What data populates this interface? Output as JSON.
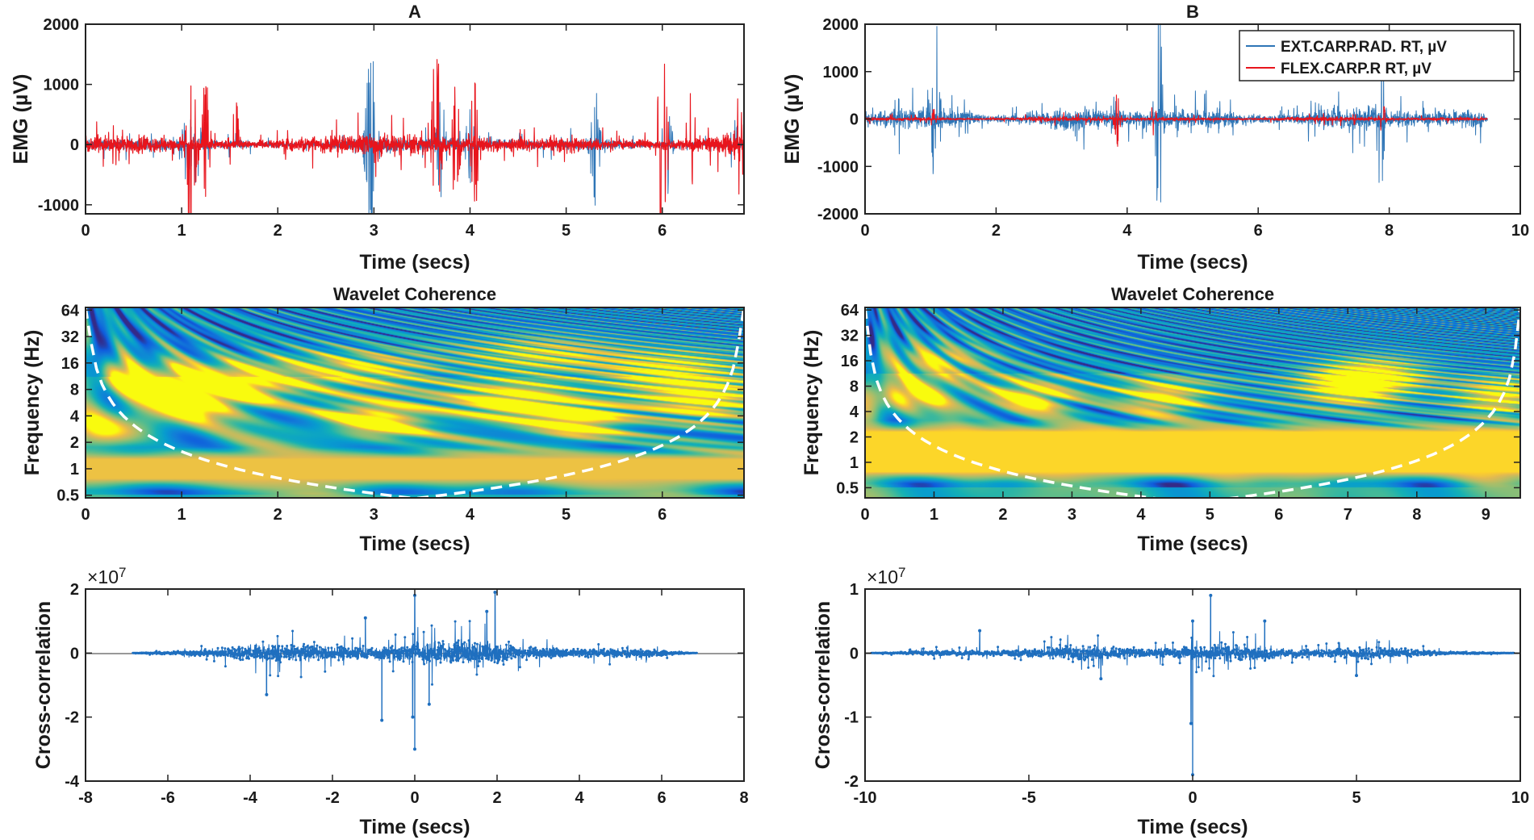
{
  "chart_data": [
    {
      "id": "A-emg",
      "type": "line",
      "title": "A",
      "xlabel": "Time (secs)",
      "ylabel": "EMG (µV)",
      "xlim": [
        0,
        6.85
      ],
      "ylim": [
        -1150,
        2000
      ],
      "xticks": [
        0,
        1,
        2,
        3,
        4,
        5,
        6
      ],
      "xtick_labels": [
        "0",
        "1",
        "2",
        "3",
        "4",
        "5",
        "6"
      ],
      "yticks": [
        -1000,
        0,
        1000,
        2000
      ],
      "ytick_labels": [
        "-1000",
        "0",
        "1000",
        "2000"
      ],
      "series": [
        {
          "name": "EXT.CARP.RAD. RT, µV",
          "color": "#2e75b6",
          "baseline_amp": 150,
          "bursts": [
            {
              "t": 1.05,
              "amp": 650
            },
            {
              "t": 1.15,
              "amp": 900
            },
            {
              "t": 2.95,
              "amp": 1050
            },
            {
              "t": 3.0,
              "amp": 950
            },
            {
              "t": 3.7,
              "amp": 1000
            },
            {
              "t": 4.0,
              "amp": 650
            },
            {
              "t": 5.3,
              "amp": 1050
            },
            {
              "t": 6.05,
              "amp": 900
            },
            {
              "t": 6.75,
              "amp": 600
            }
          ]
        },
        {
          "name": "FLEX.CARP.R RT, µV",
          "color": "#e8141c",
          "baseline_amp": 230,
          "bursts": [
            {
              "t": 1.1,
              "amp": 1750
            },
            {
              "t": 1.25,
              "amp": 1100
            },
            {
              "t": 1.55,
              "amp": 900
            },
            {
              "t": 3.65,
              "amp": 1800
            },
            {
              "t": 3.85,
              "amp": 1000
            },
            {
              "t": 4.05,
              "amp": 1100
            },
            {
              "t": 6.0,
              "amp": 1900
            },
            {
              "t": 6.3,
              "amp": 1000
            },
            {
              "t": 6.8,
              "amp": 950
            }
          ]
        }
      ]
    },
    {
      "id": "B-emg",
      "type": "line",
      "title": "B",
      "xlabel": "Time (secs)",
      "ylabel": "EMG (µV)",
      "xlim": [
        0,
        10
      ],
      "ylim": [
        -2000,
        2000
      ],
      "xticks": [
        0,
        2,
        4,
        6,
        8,
        10
      ],
      "xtick_labels": [
        "0",
        "2",
        "4",
        "6",
        "8",
        "10"
      ],
      "yticks": [
        -2000,
        -1000,
        0,
        1000,
        2000
      ],
      "ytick_labels": [
        "-2000",
        "-1000",
        "0",
        "1000",
        "2000"
      ],
      "legend": "top-right",
      "series": [
        {
          "name": "EXT.CARP.RAD. RT, µV",
          "color": "#2e75b6",
          "baseline_amp": 320,
          "end": 9.5,
          "bursts": [
            {
              "t": 0.5,
              "amp": 1100
            },
            {
              "t": 1.05,
              "amp": 1200
            },
            {
              "t": 1.1,
              "amp": 1500
            },
            {
              "t": 3.8,
              "amp": 700
            },
            {
              "t": 4.45,
              "amp": 1200
            },
            {
              "t": 4.5,
              "amp": 1900
            },
            {
              "t": 5.2,
              "amp": 700
            },
            {
              "t": 7.85,
              "amp": 1400
            },
            {
              "t": 7.9,
              "amp": 900
            }
          ]
        },
        {
          "name": "FLEX.CARP.R RT, µV",
          "color": "#e8141c",
          "baseline_amp": 60,
          "end": 9.5,
          "bursts": [
            {
              "t": 1.05,
              "amp": 250
            },
            {
              "t": 3.85,
              "amp": 600
            },
            {
              "t": 4.4,
              "amp": 450
            },
            {
              "t": 7.5,
              "amp": 150
            },
            {
              "t": 7.9,
              "amp": 350
            }
          ]
        }
      ]
    },
    {
      "id": "A-coh",
      "type": "heatmap",
      "title": "Wavelet Coherence",
      "xlabel": "Time (secs)",
      "ylabel": "Frequency (Hz)",
      "xlim": [
        0,
        6.85
      ],
      "ylim_log2": [
        -1.1,
        6.1
      ],
      "xticks": [
        0,
        1,
        2,
        3,
        4,
        5,
        6
      ],
      "xtick_labels": [
        "0",
        "1",
        "2",
        "3",
        "4",
        "5",
        "6"
      ],
      "yticks_hz": [
        0.5,
        1,
        2,
        4,
        8,
        16,
        32,
        64
      ],
      "ytick_labels": [
        "0.5",
        "1",
        "2",
        "4",
        "8",
        "16",
        "32",
        "64"
      ],
      "cone_of_influence": "white dashed",
      "coherent_regions": [
        {
          "t": 3.0,
          "f_hz": 3.5,
          "coh": 0.95
        },
        {
          "t": 4.4,
          "f_hz": 6,
          "coh": 0.85
        },
        {
          "t": 5.1,
          "f_hz": 3.5,
          "coh": 0.9
        },
        {
          "t": 1.2,
          "f_hz": 6,
          "coh": 0.85
        },
        {
          "t": 0.6,
          "f_hz": 11,
          "coh": 0.75
        },
        {
          "t": 1.7,
          "f_hz": 11,
          "coh": 0.7
        },
        {
          "t": 6.1,
          "f_hz": 14,
          "coh": 0.8
        },
        {
          "t": 6.4,
          "f_hz": 6,
          "coh": 0.8
        },
        {
          "t": 2.9,
          "f_hz": 14,
          "coh": 0.7
        },
        {
          "t": 4.7,
          "f_hz": 20,
          "coh": 0.7
        },
        {
          "t": 0.4,
          "f_hz": 3,
          "coh": 0.65
        }
      ],
      "band": {
        "f_low_hz": 0.7,
        "f_high_hz": 1.4,
        "coh": 0.9
      }
    },
    {
      "id": "B-coh",
      "type": "heatmap",
      "title": "Wavelet Coherence",
      "xlabel": "Time (secs)",
      "ylabel": "Frequency (Hz)",
      "xlim": [
        0,
        9.5
      ],
      "ylim_log2": [
        -1.4,
        6.1
      ],
      "xticks": [
        0,
        1,
        2,
        3,
        4,
        5,
        6,
        7,
        8,
        9
      ],
      "xtick_labels": [
        "0",
        "1",
        "2",
        "3",
        "4",
        "5",
        "6",
        "7",
        "8",
        "9"
      ],
      "yticks_hz": [
        0.5,
        1,
        2,
        4,
        8,
        16,
        32,
        64
      ],
      "ytick_labels": [
        "0.5",
        "1",
        "2",
        "4",
        "8",
        "16",
        "32",
        "64"
      ],
      "cone_of_influence": "white dashed",
      "coherent_regions": [
        {
          "t": 0.6,
          "f_hz": 6,
          "coh": 0.85
        },
        {
          "t": 2.4,
          "f_hz": 6,
          "coh": 0.8
        },
        {
          "t": 4.3,
          "f_hz": 6,
          "coh": 0.8
        },
        {
          "t": 7.0,
          "f_hz": 8,
          "coh": 0.85
        },
        {
          "t": 7.4,
          "f_hz": 11,
          "coh": 0.8
        },
        {
          "t": 1.0,
          "f_hz": 16,
          "coh": 0.7
        },
        {
          "t": 9.2,
          "f_hz": 6,
          "coh": 0.75
        }
      ],
      "band": {
        "f_low_hz": 0.7,
        "f_high_hz": 2.5,
        "coh": 0.95
      }
    },
    {
      "id": "A-xcorr",
      "type": "scatter",
      "xlabel": "Time (secs)",
      "ylabel": "Cross-correlation",
      "exponent": "×10",
      "exponent_power": "7",
      "xlim": [
        -8,
        8
      ],
      "ylim": [
        -4,
        2
      ],
      "data_scale": 10000000,
      "xticks": [
        -8,
        -6,
        -4,
        -2,
        0,
        2,
        4,
        6,
        8
      ],
      "xtick_labels": [
        "-8",
        "-6",
        "-4",
        "-2",
        "0",
        "2",
        "4",
        "6",
        "8"
      ],
      "yticks": [
        -4,
        -2,
        0,
        2
      ],
      "ytick_labels": [
        "-4",
        "-2",
        "0",
        "2"
      ],
      "support": [
        -6.85,
        6.85
      ],
      "typical_amp": 0.45,
      "peak_max": 1.9,
      "peak_min": -3.0,
      "spikes": [
        {
          "t": 0.0,
          "v": -3.0
        },
        {
          "t": 0.0,
          "v": 1.8
        },
        {
          "t": -0.05,
          "v": -2.0
        },
        {
          "t": -0.8,
          "v": -2.1
        },
        {
          "t": 1.95,
          "v": 1.9
        },
        {
          "t": 1.75,
          "v": 1.3
        },
        {
          "t": -1.2,
          "v": 1.1
        },
        {
          "t": -3.6,
          "v": -1.3
        },
        {
          "t": 0.35,
          "v": -1.6
        }
      ],
      "color": "#1f6fbf"
    },
    {
      "id": "B-xcorr",
      "type": "scatter",
      "xlabel": "Time (secs)",
      "ylabel": "Cross-correlation",
      "exponent": "×10",
      "exponent_power": "7",
      "xlim": [
        -10,
        10
      ],
      "ylim": [
        -2,
        1
      ],
      "data_scale": 10000000,
      "xticks": [
        -10,
        -5,
        0,
        5,
        10
      ],
      "xtick_labels": [
        "-10",
        "-5",
        "0",
        "5",
        "10"
      ],
      "yticks": [
        -2,
        -1,
        0,
        1
      ],
      "ytick_labels": [
        "-2",
        "-1",
        "0",
        "1"
      ],
      "support": [
        -9.8,
        9.8
      ],
      "typical_amp": 0.15,
      "peak_max": 0.9,
      "peak_min": -1.9,
      "spikes": [
        {
          "t": 0.0,
          "v": -1.9
        },
        {
          "t": 0.0,
          "v": 0.5
        },
        {
          "t": 0.55,
          "v": 0.9
        },
        {
          "t": -0.05,
          "v": -1.1
        },
        {
          "t": -2.8,
          "v": -0.4
        },
        {
          "t": 2.2,
          "v": 0.5
        },
        {
          "t": -6.5,
          "v": 0.35
        },
        {
          "t": 5.0,
          "v": -0.35
        }
      ],
      "color": "#1f6fbf"
    }
  ]
}
